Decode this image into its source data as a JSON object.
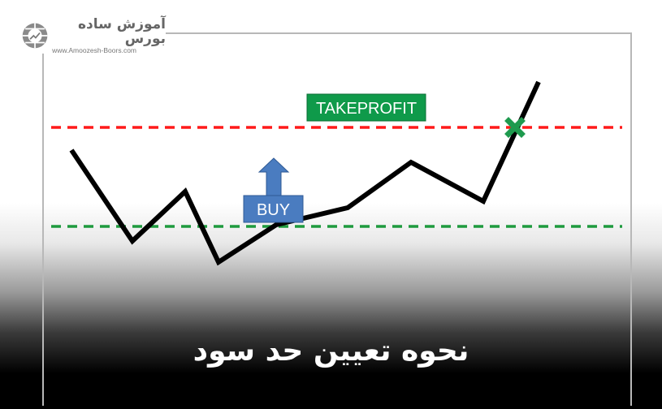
{
  "logo": {
    "name_fa": "آموزش ساده بورس",
    "url": "www.Amoozesh-Boors.com"
  },
  "labels": {
    "take_profit": "TAKEPROFIT",
    "buy": "BUY"
  },
  "title": "نحوه تعیین حد سود",
  "colors": {
    "take_profit": "#ff1a1a",
    "entry": "#1e9a3e",
    "price_line": "#000000",
    "buy_box": "#4a7cc0",
    "tp_box": "#0f9a4a"
  }
}
